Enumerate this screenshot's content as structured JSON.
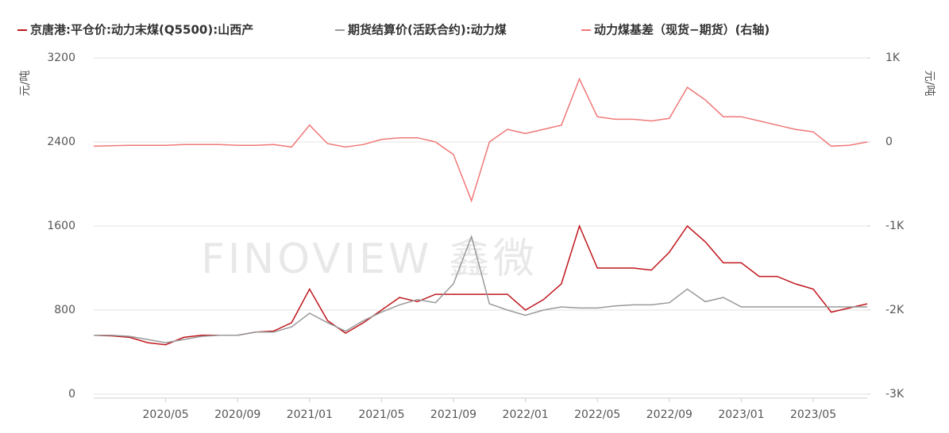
{
  "chart_data": {
    "type": "line",
    "y_label": "元/吨",
    "y2_label": "元/吨",
    "watermark": "FINOVIEW 鑫微",
    "grid": true,
    "categories": [
      null,
      null,
      null,
      null,
      "2020/05",
      null,
      null,
      null,
      "2020/09",
      null,
      null,
      null,
      "2021/01",
      null,
      null,
      null,
      "2021/05",
      null,
      null,
      null,
      "2021/09",
      null,
      null,
      null,
      "2022/01",
      null,
      null,
      null,
      "2022/05",
      null,
      null,
      null,
      "2022/09",
      null,
      null,
      null,
      "2023/01",
      null,
      null,
      null,
      "2023/05",
      null,
      null,
      null
    ],
    "ylim": [
      0,
      3200
    ],
    "yticks": [
      0,
      800,
      1600,
      2400,
      3200
    ],
    "y2lim": [
      -3000,
      1000
    ],
    "y2ticks": [
      {
        "value": -3000,
        "label": "-3K"
      },
      {
        "value": -2000,
        "label": "-2K"
      },
      {
        "value": -1000,
        "label": "-1K"
      },
      0,
      {
        "value": 1000,
        "label": "1K"
      }
    ],
    "series": [
      {
        "name": "京唐港:平仓价:动力末煤(Q5500):山西产",
        "color": "#c0161c",
        "values": [
          560,
          555,
          540,
          490,
          470,
          540,
          560,
          560,
          560,
          590,
          600,
          680,
          1000,
          700,
          580,
          680,
          800,
          920,
          880,
          950,
          950,
          950,
          950,
          950,
          800,
          900,
          1050,
          1600,
          1200,
          1200,
          1200,
          1180,
          1350,
          1600,
          1450,
          1250,
          1250,
          1120,
          1120,
          1050,
          1000,
          780,
          820,
          860
        ]
      },
      {
        "name": "期货结算价(活跃合约):动力煤",
        "color": "#999999",
        "values": [
          560,
          560,
          550,
          520,
          490,
          520,
          550,
          560,
          560,
          590,
          590,
          640,
          770,
          680,
          600,
          700,
          780,
          850,
          900,
          870,
          1050,
          1500,
          860,
          800,
          750,
          800,
          830,
          820,
          820,
          840,
          850,
          850,
          870,
          1000,
          880,
          920,
          830,
          830,
          830,
          830,
          830,
          830,
          830,
          830
        ]
      },
      {
        "name": "动力煤基差（现货−期货）(右轴)",
        "color": "#f07878",
        "axis": "y2",
        "values": [
          -50,
          -45,
          -40,
          -40,
          -40,
          -30,
          -30,
          -30,
          -40,
          -40,
          -30,
          -60,
          200,
          -20,
          -60,
          -30,
          30,
          50,
          50,
          0,
          -150,
          -700,
          0,
          150,
          100,
          150,
          200,
          750,
          300,
          270,
          270,
          250,
          280,
          650,
          500,
          300,
          300,
          250,
          200,
          150,
          120,
          -50,
          -40,
          0
        ]
      }
    ]
  }
}
